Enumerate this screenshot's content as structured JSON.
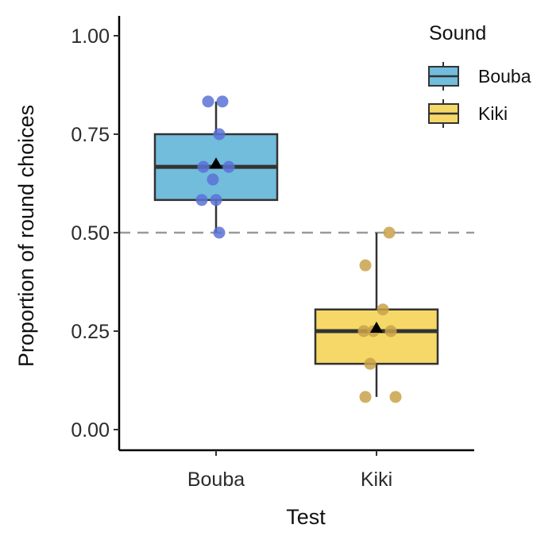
{
  "chart_data": {
    "type": "box",
    "xlabel": "Test",
    "ylabel": "Proportion of round choices",
    "ylim": [
      0,
      1
    ],
    "yticks": [
      "0.00",
      "0.25",
      "0.50",
      "0.75",
      "1.00"
    ],
    "categories": [
      "Bouba",
      "Kiki"
    ],
    "reference_line": {
      "y": 0.5,
      "style": "dashed"
    },
    "grid": false,
    "legend": {
      "title": "Sound",
      "placement": "top-right",
      "entries": [
        {
          "label": "Bouba",
          "fill": "#72bcdc"
        },
        {
          "label": "Kiki",
          "fill": "#f5d868"
        }
      ]
    },
    "series": [
      {
        "category": "Bouba",
        "fill": "#72bcdc",
        "point_color": "#5a72d6",
        "q1": 0.583,
        "median": 0.667,
        "q3": 0.75,
        "whisker_low": 0.5,
        "whisker_high": 0.833,
        "mean": 0.675,
        "points": [
          {
            "x": -0.05,
            "y": 0.833
          },
          {
            "x": 0.04,
            "y": 0.833
          },
          {
            "x": 0.02,
            "y": 0.75
          },
          {
            "x": -0.08,
            "y": 0.667
          },
          {
            "x": 0.08,
            "y": 0.667
          },
          {
            "x": -0.02,
            "y": 0.635
          },
          {
            "x": -0.09,
            "y": 0.583
          },
          {
            "x": 0.0,
            "y": 0.583
          },
          {
            "x": 0.02,
            "y": 0.5
          }
        ]
      },
      {
        "category": "Kiki",
        "fill": "#f5d868",
        "point_color": "#c9a24a",
        "q1": 0.167,
        "median": 0.25,
        "q3": 0.305,
        "whisker_low": 0.083,
        "whisker_high": 0.5,
        "mean": 0.258,
        "points": [
          {
            "x": 0.08,
            "y": 0.5
          },
          {
            "x": -0.07,
            "y": 0.417
          },
          {
            "x": 0.04,
            "y": 0.305
          },
          {
            "x": -0.08,
            "y": 0.25
          },
          {
            "x": -0.02,
            "y": 0.25
          },
          {
            "x": 0.09,
            "y": 0.25
          },
          {
            "x": -0.04,
            "y": 0.167
          },
          {
            "x": -0.07,
            "y": 0.083
          },
          {
            "x": 0.12,
            "y": 0.083
          }
        ]
      }
    ]
  }
}
